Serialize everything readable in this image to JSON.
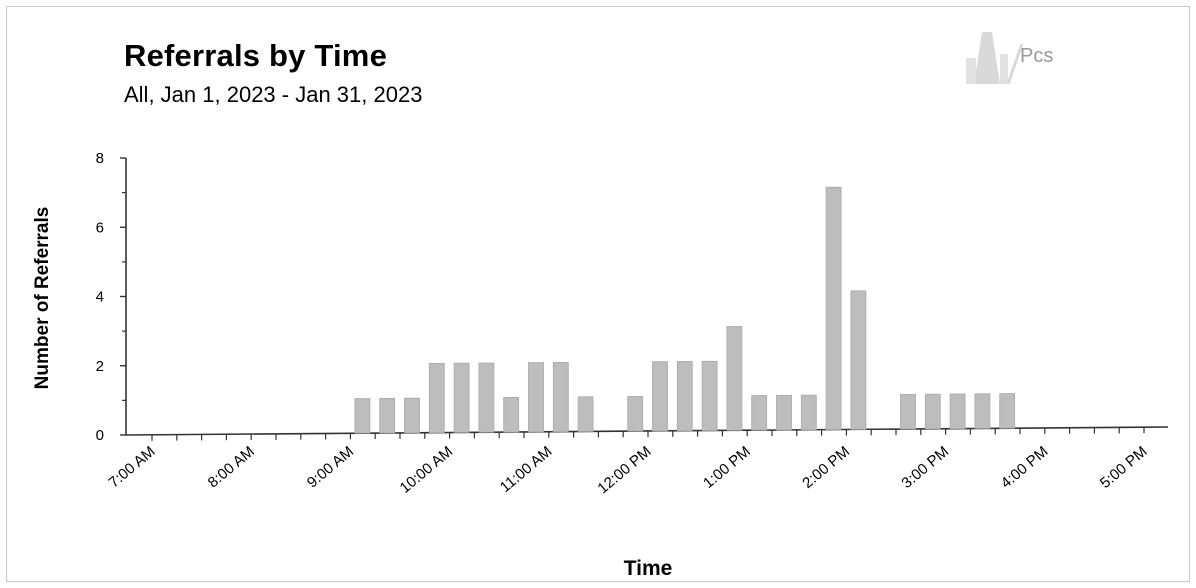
{
  "chart_data": {
    "type": "bar",
    "title": "Referrals by Time",
    "subtitle": "All, Jan 1, 2023 - Jan 31, 2023",
    "xlabel": "Time",
    "ylabel": "Number of Referrals",
    "ylim": [
      0,
      8
    ],
    "yticks": [
      0,
      2,
      4,
      6,
      8
    ],
    "xtick_labels": [
      "7:00 AM",
      "8:00 AM",
      "9:00 AM",
      "10:00 AM",
      "11:00 AM",
      "12:00 PM",
      "1:00 PM",
      "2:00 PM",
      "3:00 PM",
      "4:00 PM",
      "5:00 PM"
    ],
    "interval": "15 minutes",
    "bars": [
      {
        "time": "9:00 AM",
        "value": 1
      },
      {
        "time": "9:15 AM",
        "value": 1
      },
      {
        "time": "9:30 AM",
        "value": 1
      },
      {
        "time": "9:45 AM",
        "value": 2
      },
      {
        "time": "10:00 AM",
        "value": 2
      },
      {
        "time": "10:15 AM",
        "value": 2
      },
      {
        "time": "10:30 AM",
        "value": 1
      },
      {
        "time": "10:45 AM",
        "value": 2
      },
      {
        "time": "11:00 AM",
        "value": 2
      },
      {
        "time": "11:15 AM",
        "value": 1
      },
      {
        "time": "11:45 AM",
        "value": 1
      },
      {
        "time": "12:00 PM",
        "value": 2
      },
      {
        "time": "12:15 PM",
        "value": 2
      },
      {
        "time": "12:30 PM",
        "value": 2
      },
      {
        "time": "12:45 PM",
        "value": 3
      },
      {
        "time": "1:00 PM",
        "value": 1
      },
      {
        "time": "1:15 PM",
        "value": 1
      },
      {
        "time": "1:30 PM",
        "value": 1
      },
      {
        "time": "1:45 PM",
        "value": 7
      },
      {
        "time": "2:00 PM",
        "value": 4
      },
      {
        "time": "2:30 PM",
        "value": 1
      },
      {
        "time": "2:45 PM",
        "value": 1
      },
      {
        "time": "3:00 PM",
        "value": 1
      },
      {
        "time": "3:15 PM",
        "value": 1
      },
      {
        "time": "3:30 PM",
        "value": 1
      }
    ],
    "bar_color": "#bdbdbd",
    "grid": false,
    "legend": "none"
  },
  "logo": {
    "text": "Pcs"
  }
}
